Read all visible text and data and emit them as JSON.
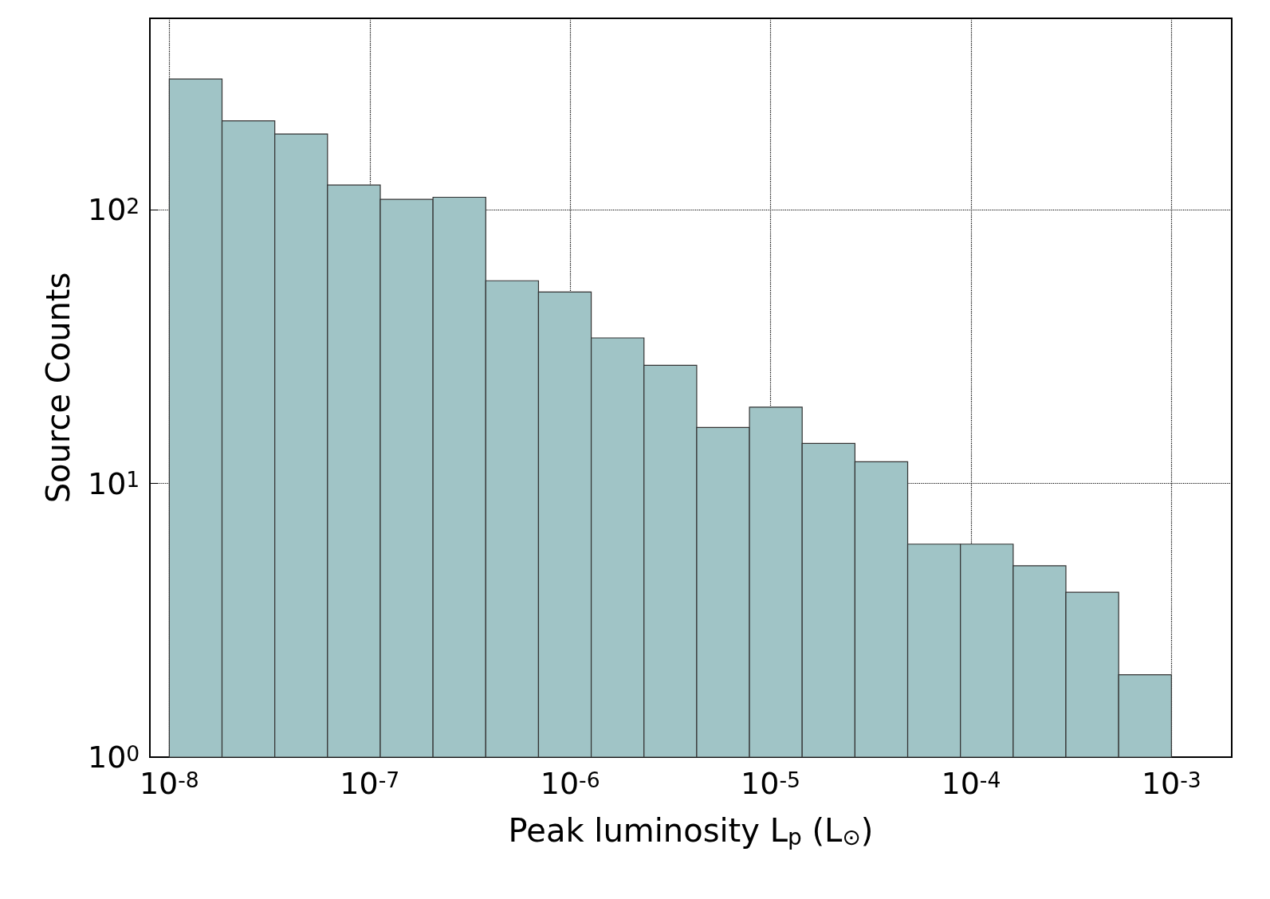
{
  "chart_data": {
    "type": "histogram",
    "xlabel": "Peak luminosity L$_{p}$ (L$_{⊙}$)",
    "ylabel": "Source Counts",
    "color": "#a0c4c6",
    "bins": [
      1e-08,
      1.833e-08,
      3.36e-08,
      6.158e-08,
      1.129e-07,
      2.069e-07,
      3.793e-07,
      6.952e-07,
      1.274e-06,
      2.336e-06,
      4.281e-06,
      7.848e-06,
      1.438e-05,
      2.637e-05,
      4.833e-05,
      8.859e-05,
      0.0001624,
      0.0002976,
      0.0005456,
      0.001
    ],
    "values": [
      300,
      211,
      189,
      123,
      109,
      111,
      55,
      50,
      34,
      27,
      16,
      19,
      14,
      12,
      6,
      6,
      5,
      4,
      2
    ],
    "log": "xy",
    "xlim": [
      8e-09,
      0.002
    ],
    "ylim": [
      1,
      500
    ],
    "xticks": [
      {
        "value": 1e-08,
        "label": "10$^{-8}$"
      },
      {
        "value": 1e-07,
        "label": "10$^{-7}$"
      },
      {
        "value": 1e-06,
        "label": "10$^{-6}$"
      },
      {
        "value": 1e-05,
        "label": "10$^{-5}$"
      },
      {
        "value": 0.0001,
        "label": "10$^{-4}$"
      },
      {
        "value": 0.001,
        "label": "10$^{-3}$"
      }
    ],
    "yticks": [
      {
        "value": 1,
        "label": "10$^{0}$"
      },
      {
        "value": 10,
        "label": "10$^{1}$"
      },
      {
        "value": 100,
        "label": "10$^{2}$"
      }
    ],
    "grid": true
  }
}
